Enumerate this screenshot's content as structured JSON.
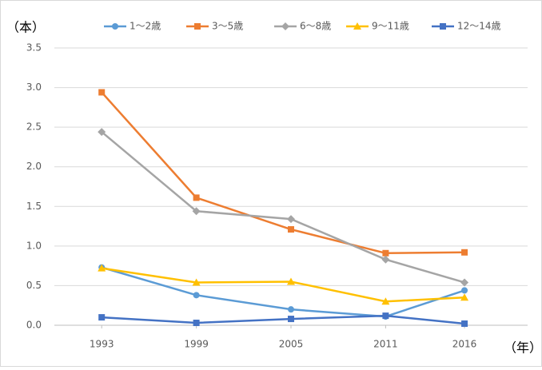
{
  "chart_data": {
    "type": "line",
    "y_label": "（本）",
    "x_label": "（年）",
    "x": [
      1993,
      1999,
      2005,
      2011,
      2016
    ],
    "xlim": [
      1990,
      2020
    ],
    "xticks": [
      1993,
      1999,
      2005,
      2011,
      2016
    ],
    "ylim": [
      0,
      3.5
    ],
    "yticks": [
      {
        "value": 0,
        "label": "0.0"
      },
      0.5,
      {
        "value": 1,
        "label": "1.0"
      },
      1.5,
      {
        "value": 2,
        "label": "2.0"
      },
      2.5,
      {
        "value": 3,
        "label": "3.0"
      },
      3.5
    ],
    "grid": true,
    "legend": "top",
    "series": [
      {
        "name": "1～2歳",
        "color": "#5b9bd5",
        "marker": "circle",
        "values": [
          0.73,
          0.38,
          0.2,
          0.11,
          0.44
        ]
      },
      {
        "name": "3～5歳",
        "color": "#ed7d31",
        "marker": "square",
        "values": [
          2.94,
          1.61,
          1.21,
          0.91,
          0.92
        ]
      },
      {
        "name": "6～8歳",
        "color": "#a5a5a5",
        "marker": "diamond",
        "values": [
          2.44,
          1.44,
          1.34,
          0.83,
          0.54
        ]
      },
      {
        "name": "9～11歳",
        "color": "#ffc000",
        "marker": "triangle",
        "values": [
          0.72,
          0.54,
          0.55,
          0.3,
          0.35
        ]
      },
      {
        "name": "12～14歳",
        "color": "#4472c4",
        "marker": "square",
        "values": [
          0.1,
          0.03,
          0.08,
          0.12,
          0.02
        ]
      }
    ]
  }
}
